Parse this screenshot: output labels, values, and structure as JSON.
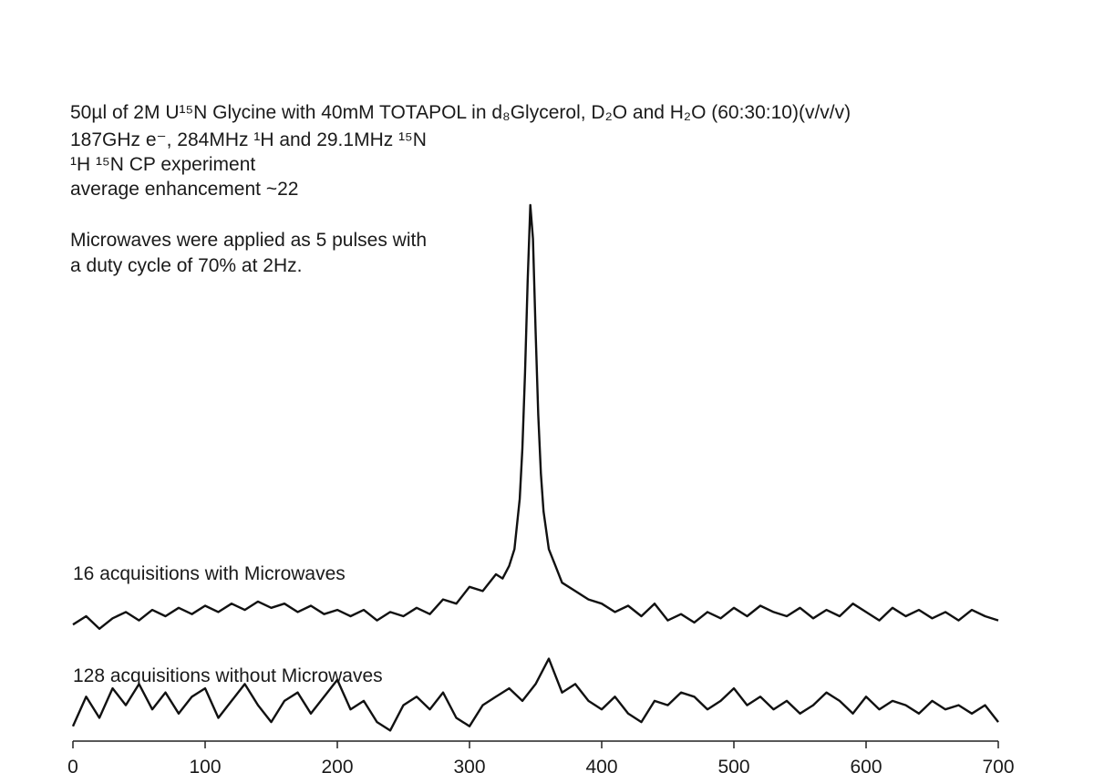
{
  "chart_data": [
    {
      "type": "line",
      "annotations": [
        "50µl of 2M U¹⁵N Glycine with 40mM TOTAPOL in d₈Glycerol, D₂O and H₂O (60:30:10)(v/v/v)",
        "187GHz e⁻, 284MHz ¹H and 29.1MHz ¹⁵N",
        "¹H ¹⁵N CP experiment",
        "average enhancement ~22",
        "Microwaves were applied as 5 pulses with",
        "a duty cycle of 70% at 2Hz."
      ],
      "x": [
        0,
        10,
        20,
        30,
        40,
        50,
        60,
        70,
        80,
        90,
        100,
        110,
        120,
        130,
        140,
        150,
        160,
        170,
        180,
        190,
        200,
        210,
        220,
        230,
        240,
        250,
        260,
        270,
        280,
        290,
        300,
        310,
        320,
        325,
        330,
        334,
        338,
        340,
        342,
        344,
        346,
        348,
        350,
        352,
        354,
        356,
        360,
        365,
        370,
        380,
        390,
        400,
        410,
        420,
        430,
        440,
        450,
        460,
        470,
        480,
        490,
        500,
        510,
        520,
        530,
        540,
        550,
        560,
        570,
        580,
        590,
        600,
        610,
        620,
        630,
        640,
        650,
        660,
        670,
        680,
        690,
        700
      ],
      "series": [
        {
          "name": "16 acquisitions with Microwaves",
          "color": "#111111",
          "values": [
            0,
            2,
            -1,
            1.5,
            3,
            1,
            3.5,
            2,
            4,
            2.5,
            4.5,
            3,
            5,
            3.5,
            5.5,
            4,
            5,
            3,
            4.5,
            2.5,
            3.5,
            2,
            3.5,
            1,
            3,
            2,
            4,
            2.5,
            6,
            5,
            9,
            8,
            12,
            11,
            14,
            18,
            30,
            42,
            60,
            82,
            100,
            92,
            70,
            50,
            36,
            27,
            18,
            14,
            10,
            8,
            6,
            5,
            3,
            4.5,
            2,
            5,
            1,
            2.5,
            0.5,
            3,
            1.5,
            4,
            2,
            4.5,
            3,
            2,
            4,
            1.5,
            3.5,
            2,
            5,
            3,
            1,
            4,
            2,
            3.5,
            1.5,
            3,
            1,
            3.5,
            2,
            1
          ]
        }
      ],
      "xlim": [
        0,
        700
      ],
      "ylim": [
        -3,
        100
      ]
    },
    {
      "type": "line",
      "x": [
        0,
        10,
        20,
        30,
        40,
        50,
        60,
        70,
        80,
        90,
        100,
        110,
        120,
        130,
        140,
        150,
        160,
        170,
        180,
        190,
        200,
        210,
        220,
        230,
        240,
        250,
        260,
        270,
        280,
        290,
        300,
        310,
        320,
        330,
        340,
        350,
        360,
        370,
        380,
        390,
        400,
        410,
        420,
        430,
        440,
        450,
        460,
        470,
        480,
        490,
        500,
        510,
        520,
        530,
        540,
        550,
        560,
        570,
        580,
        590,
        600,
        610,
        620,
        630,
        640,
        650,
        660,
        670,
        680,
        690,
        700
      ],
      "series": [
        {
          "name": "128 acquisitions without Microwaves",
          "color": "#111111",
          "values": [
            -4,
            3,
            -2,
            5,
            1,
            6,
            0,
            4,
            -1,
            3,
            5,
            -2,
            2,
            6,
            1,
            -3,
            2,
            4,
            -1,
            3,
            7,
            0,
            2,
            -3,
            -5,
            1,
            3,
            0,
            4,
            -2,
            -4,
            1,
            3,
            5,
            2,
            6,
            12,
            4,
            6,
            2,
            0,
            3,
            -1,
            -3,
            2,
            1,
            4,
            3,
            0,
            2,
            5,
            1,
            3,
            0,
            2,
            -1,
            1,
            4,
            2,
            -1,
            3,
            0,
            2,
            1,
            -1,
            2,
            0,
            1,
            -1,
            1,
            -3
          ]
        }
      ],
      "xlim": [
        0,
        700
      ],
      "ylim": [
        -6,
        13
      ],
      "xticks": [
        0,
        100,
        200,
        300,
        400,
        500,
        600,
        700
      ]
    }
  ]
}
